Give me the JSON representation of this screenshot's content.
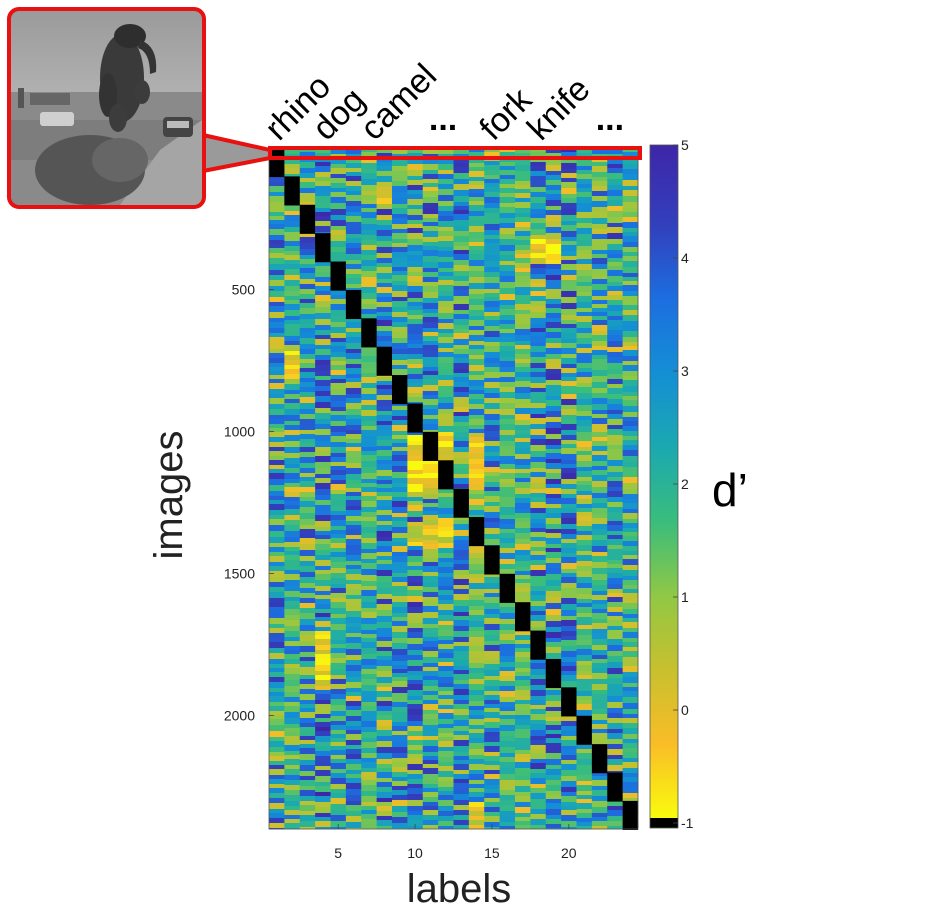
{
  "chart_data": {
    "type": "heatmap",
    "title": "",
    "xlabel": "labels",
    "ylabel": "images",
    "colorbar_label": "d’",
    "x_range": [
      0.5,
      24.5
    ],
    "y_range": [
      1,
      2400
    ],
    "n_labels": 24,
    "n_images": 2400,
    "x_ticks": [
      5,
      10,
      15,
      20
    ],
    "y_ticks": [
      500,
      1000,
      1500,
      2000
    ],
    "y_reversed": true,
    "colorbar_range": [
      -1,
      5
    ],
    "colorbar_ticks": [
      -1,
      0,
      1,
      2,
      3,
      4,
      5
    ],
    "colormap": [
      "#f9fb0e",
      "#f9bd27",
      "#c8c02e",
      "#90c845",
      "#3abd7c",
      "#1ba9b0",
      "#148fd4",
      "#1c6fe0",
      "#3240bd",
      "#3e26a8"
    ],
    "diagonal_value": -1,
    "diagonal_color": "#000000",
    "images_per_label": 100,
    "category_labels": [
      {
        "text": "rhino",
        "label_index": 1
      },
      {
        "text": "dog",
        "label_index": 3
      },
      {
        "text": "camel",
        "label_index": 5
      },
      {
        "text": "...",
        "label_index": 7.5
      },
      {
        "text": "fork",
        "label_index": 10
      },
      {
        "text": "knife",
        "label_index": 12
      },
      {
        "text": "...",
        "label_index": 14.5
      }
    ],
    "high_similarity_blocks": [
      {
        "labels": [
          1,
          1
        ],
        "images": [
          1,
          20
        ],
        "value": 0.6
      },
      {
        "labels": [
          8,
          8
        ],
        "images": [
          101,
          200
        ],
        "value": 0.8
      },
      {
        "labels": [
          2,
          2
        ],
        "images": [
          701,
          800
        ],
        "value": 0.5
      },
      {
        "labels": [
          10,
          12
        ],
        "images": [
          1001,
          1200
        ],
        "value": 0.5
      },
      {
        "labels": [
          14,
          14
        ],
        "images": [
          1001,
          1200
        ],
        "value": 0.7
      },
      {
        "labels": [
          10,
          12
        ],
        "images": [
          1301,
          1400
        ],
        "value": 0.8
      },
      {
        "labels": [
          18,
          19
        ],
        "images": [
          301,
          400
        ],
        "value": 0.5
      },
      {
        "labels": [
          4,
          4
        ],
        "images": [
          1701,
          1900
        ],
        "value": 0.6
      },
      {
        "labels": [
          14,
          14
        ],
        "images": [
          2301,
          2400
        ],
        "value": 0.9
      }
    ],
    "highlighted_row": {
      "images": [
        1,
        20
      ]
    },
    "inset_image": {
      "description_name": "example-image-thumbnail"
    }
  }
}
